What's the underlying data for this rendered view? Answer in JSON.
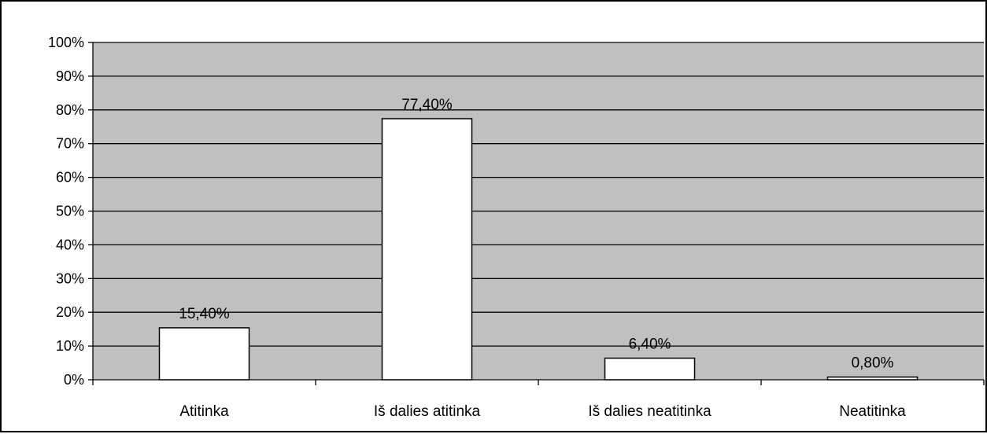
{
  "chart_data": {
    "type": "bar",
    "categories": [
      "Atitinka",
      "Iš dalies atitinka",
      "Iš dalies neatitinka",
      "Neatitinka"
    ],
    "values": [
      15.4,
      77.4,
      6.4,
      0.8
    ],
    "data_labels": [
      "15,40%",
      "77,40%",
      "6,40%",
      "0,80%"
    ],
    "ylim": [
      0,
      100
    ],
    "yticks": [
      0,
      10,
      20,
      30,
      40,
      50,
      60,
      70,
      80,
      90,
      100
    ],
    "ytick_labels": [
      "0%",
      "10%",
      "20%",
      "30%",
      "40%",
      "50%",
      "60%",
      "70%",
      "80%",
      "90%",
      "100%"
    ],
    "title": "",
    "xlabel": "",
    "ylabel": "",
    "grid": true,
    "legend": "none",
    "colors": {
      "plot_background": "#c0c0c0",
      "bar_fill": "#ffffff",
      "bar_stroke": "#000000",
      "gridline": "#000000"
    }
  }
}
